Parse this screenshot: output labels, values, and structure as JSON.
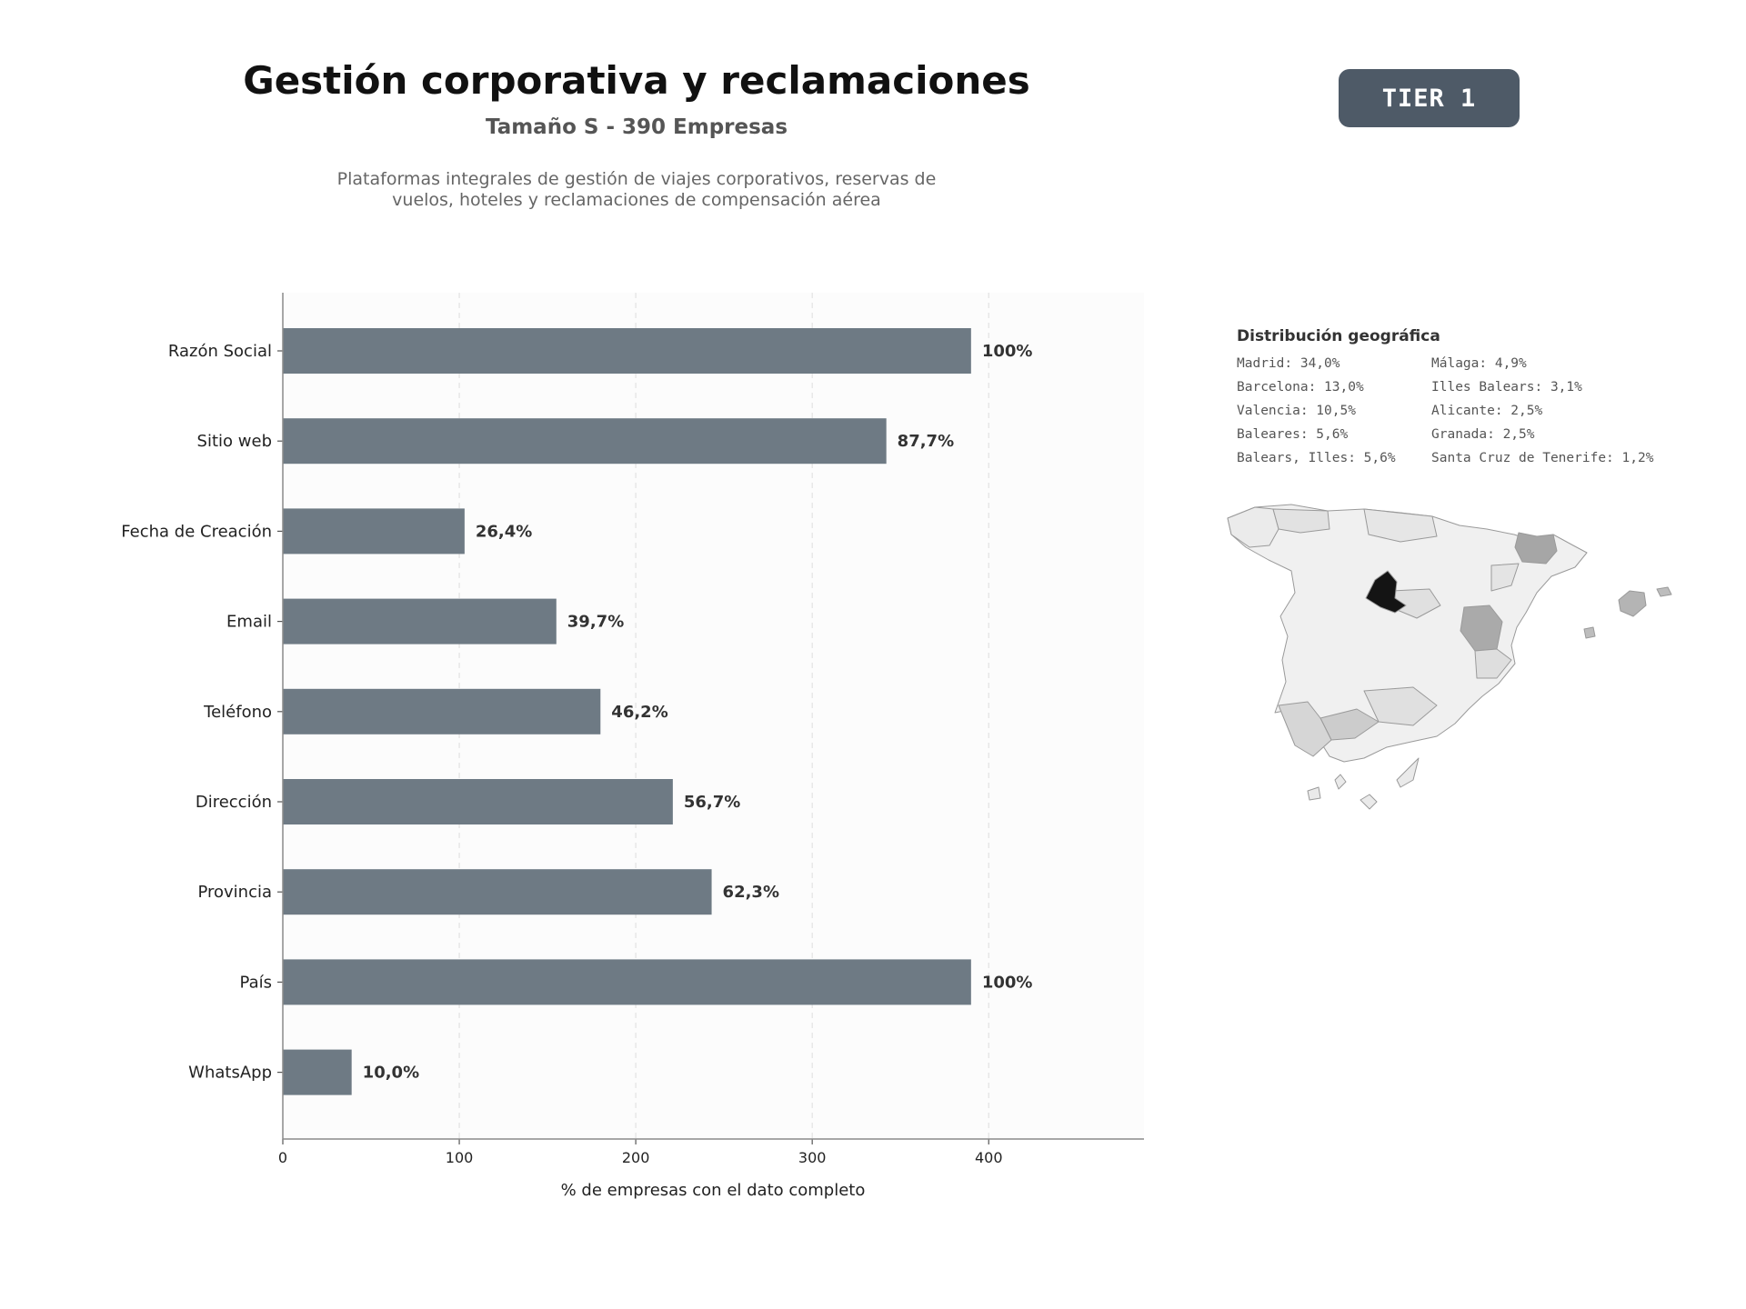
{
  "header": {
    "title": "Gestión corporativa y reclamaciones",
    "subtitle": "Tamaño S - 390 Empresas",
    "description_lines": [
      "Plataformas integrales de gestión de viajes corporativos, reservas de",
      "vuelos, hoteles y reclamaciones de compensación aérea"
    ]
  },
  "badge": {
    "label": "TIER 1",
    "color": "#4e5a67"
  },
  "chart_data": {
    "type": "bar",
    "orientation": "horizontal",
    "title": "",
    "xlabel": "% de empresas con el dato completo",
    "ylabel": "",
    "categories": [
      "Razón Social",
      "Sitio web",
      "Fecha de Creación",
      "Email",
      "Teléfono",
      "Dirección",
      "Provincia",
      "País",
      "WhatsApp"
    ],
    "values": [
      390,
      342,
      103,
      155,
      180,
      221,
      243,
      390,
      39
    ],
    "data_labels": [
      "100%",
      "87,7%",
      "26,4%",
      "39,7%",
      "46,2%",
      "56,7%",
      "62,3%",
      "100%",
      "10,0%"
    ],
    "xlim": [
      0,
      488
    ],
    "xticks": [
      0,
      100,
      200,
      300,
      400
    ],
    "grid": "vertical-dashed",
    "bar_color": "#6e7a84"
  },
  "geo": {
    "title": "Distribución geográfica",
    "left_column": [
      "Madrid: 34,0%",
      "Barcelona: 13,0%",
      "Valencia: 10,5%",
      "Baleares: 5,6%",
      "Balears, Illes: 5,6%"
    ],
    "right_column": [
      "Málaga: 4,9%",
      "Illes Balears: 3,1%",
      "Alicante: 2,5%",
      "Granada: 2,5%",
      "Santa Cruz de Tenerife: 1,2%"
    ]
  }
}
